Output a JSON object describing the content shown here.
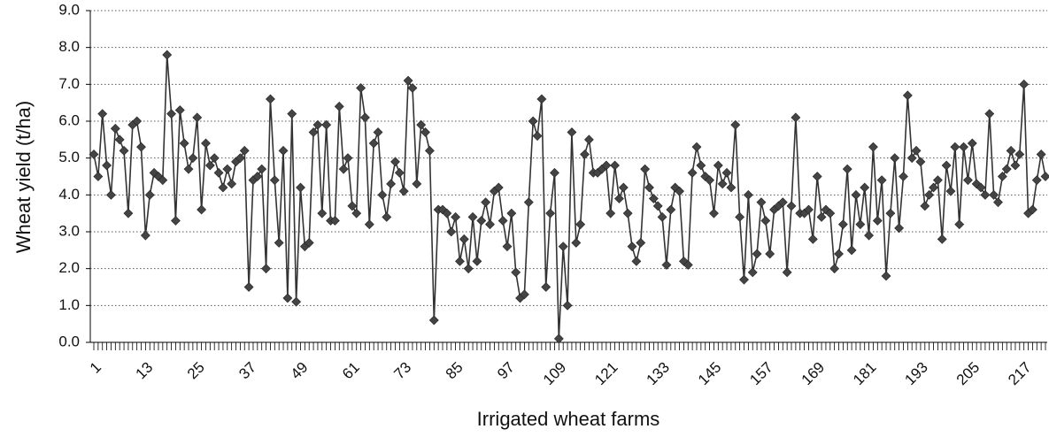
{
  "chart_data": {
    "type": "line",
    "x_label": "Irrigated wheat farms",
    "y_label": "Wheat yield (t/ha)",
    "categories": [
      1,
      null,
      null,
      null,
      null,
      null,
      null,
      null,
      null,
      null,
      null,
      null,
      13,
      null,
      null,
      null,
      null,
      null,
      null,
      null,
      null,
      null,
      null,
      null,
      25,
      null,
      null,
      null,
      null,
      null,
      null,
      null,
      null,
      null,
      null,
      null,
      37,
      null,
      null,
      null,
      null,
      null,
      null,
      null,
      null,
      null,
      null,
      null,
      49,
      null,
      null,
      null,
      null,
      null,
      null,
      null,
      null,
      null,
      null,
      null,
      61,
      null,
      null,
      null,
      null,
      null,
      null,
      null,
      null,
      null,
      null,
      null,
      73,
      null,
      null,
      null,
      null,
      null,
      null,
      null,
      null,
      null,
      null,
      null,
      85,
      null,
      null,
      null,
      null,
      null,
      null,
      null,
      null,
      null,
      null,
      null,
      97,
      null,
      null,
      null,
      null,
      null,
      null,
      null,
      null,
      null,
      null,
      null,
      109,
      null,
      null,
      null,
      null,
      null,
      null,
      null,
      null,
      null,
      null,
      null,
      121,
      null,
      null,
      null,
      null,
      null,
      null,
      null,
      null,
      null,
      null,
      null,
      133,
      null,
      null,
      null,
      null,
      null,
      null,
      null,
      null,
      null,
      null,
      null,
      145,
      null,
      null,
      null,
      null,
      null,
      null,
      null,
      null,
      null,
      null,
      null,
      157,
      null,
      null,
      null,
      null,
      null,
      null,
      null,
      null,
      null,
      null,
      null,
      169,
      null,
      null,
      null,
      null,
      null,
      null,
      null,
      null,
      null,
      null,
      null,
      181,
      null,
      null,
      null,
      null,
      null,
      null,
      null,
      null,
      null,
      null,
      null,
      193,
      null,
      null,
      null,
      null,
      null,
      null,
      null,
      null,
      null,
      null,
      null,
      205,
      null,
      null,
      null,
      null,
      null,
      null,
      null,
      null,
      null,
      null,
      null,
      217,
      null,
      null,
      null,
      null,
      null
    ],
    "values": [
      5.1,
      4.5,
      6.2,
      4.8,
      4.0,
      5.8,
      5.5,
      5.2,
      3.5,
      5.9,
      6.0,
      5.3,
      2.9,
      4.0,
      4.6,
      4.5,
      4.4,
      7.8,
      6.2,
      3.3,
      6.3,
      5.4,
      4.7,
      5.0,
      6.1,
      3.6,
      5.4,
      4.8,
      5.0,
      4.6,
      4.2,
      4.7,
      4.3,
      4.9,
      5.0,
      5.2,
      1.5,
      4.4,
      4.5,
      4.7,
      2.0,
      6.6,
      4.4,
      2.7,
      5.2,
      1.2,
      6.2,
      1.1,
      4.2,
      2.6,
      2.7,
      5.7,
      5.9,
      3.5,
      5.9,
      3.3,
      3.3,
      6.4,
      4.7,
      5.0,
      3.7,
      3.5,
      6.9,
      6.1,
      3.2,
      5.4,
      5.7,
      4.0,
      3.4,
      4.3,
      4.9,
      4.6,
      4.1,
      7.1,
      6.9,
      4.3,
      5.9,
      5.7,
      5.2,
      0.6,
      3.6,
      3.6,
      3.5,
      3.0,
      3.4,
      2.2,
      2.8,
      2.0,
      3.4,
      2.2,
      3.3,
      3.8,
      3.2,
      4.1,
      4.2,
      3.3,
      2.6,
      3.5,
      1.9,
      1.2,
      1.3,
      3.8,
      6.0,
      5.6,
      6.6,
      1.5,
      3.5,
      4.6,
      0.1,
      2.6,
      1.0,
      5.7,
      2.7,
      3.2,
      5.1,
      5.5,
      4.6,
      4.6,
      4.7,
      4.8,
      3.5,
      4.8,
      3.9,
      4.2,
      3.5,
      2.6,
      2.2,
      2.7,
      4.7,
      4.2,
      3.9,
      3.7,
      3.4,
      2.1,
      3.6,
      4.2,
      4.1,
      2.2,
      2.1,
      4.6,
      5.3,
      4.8,
      4.5,
      4.4,
      3.5,
      4.8,
      4.3,
      4.6,
      4.2,
      5.9,
      3.4,
      1.7,
      4.0,
      1.9,
      2.4,
      3.8,
      3.3,
      2.4,
      3.6,
      3.7,
      3.8,
      1.9,
      3.7,
      6.1,
      3.5,
      3.5,
      3.6,
      2.8,
      4.5,
      3.4,
      3.6,
      3.5,
      2.0,
      2.4,
      3.2,
      4.7,
      2.5,
      4.0,
      3.2,
      4.2,
      2.9,
      5.3,
      3.3,
      4.4,
      1.8,
      3.5,
      5.0,
      3.1,
      4.5,
      6.7,
      5.0,
      5.2,
      4.9,
      3.7,
      4.0,
      4.2,
      4.4,
      2.8,
      4.8,
      4.1,
      5.3,
      3.2,
      5.3,
      4.4,
      5.4,
      4.3,
      4.2,
      4.0,
      6.2,
      4.0,
      3.8,
      4.5,
      4.7,
      5.2,
      4.8,
      5.1,
      7.0,
      3.5,
      3.6,
      4.4,
      5.1,
      4.5
    ],
    "color": "#333333",
    "marker_color": "#444444",
    "ylim": [
      0,
      9
    ],
    "yticks": [
      {
        "value": 0,
        "label": "0.0"
      },
      {
        "value": 1,
        "label": "1.0"
      },
      {
        "value": 2,
        "label": "2.0"
      },
      {
        "value": 3,
        "label": "3.0"
      },
      {
        "value": 4,
        "label": "4.0"
      },
      {
        "value": 5,
        "label": "5.0"
      },
      {
        "value": 6,
        "label": "6.0"
      },
      {
        "value": 7,
        "label": "7.0"
      },
      {
        "value": 8,
        "label": "8.0"
      },
      {
        "value": 9,
        "label": "9.0"
      }
    ],
    "grid": true
  }
}
